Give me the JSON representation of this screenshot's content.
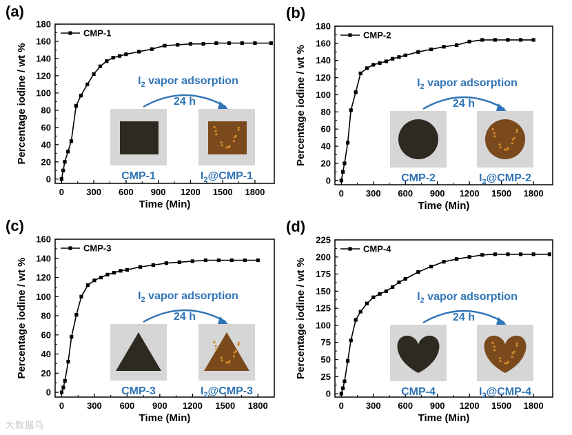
{
  "figure": {
    "watermark": "大数据鸟"
  },
  "chart_data": [
    {
      "type": "line",
      "panel_label": "(a)",
      "xlabel": "Time (Min)",
      "ylabel": "Percentage iodine / wt %",
      "xlim": [
        -60,
        1980
      ],
      "ylim": [
        -5,
        180
      ],
      "xticks": [
        0,
        300,
        600,
        900,
        1200,
        1500,
        1800
      ],
      "yticks": [
        0,
        20,
        40,
        60,
        80,
        100,
        120,
        140,
        160,
        180
      ],
      "legend_position": "top-left",
      "series": [
        {
          "name": "CMP-1",
          "color": "#000000",
          "marker": "square",
          "x": [
            0,
            15,
            30,
            60,
            90,
            135,
            180,
            240,
            300,
            360,
            420,
            480,
            540,
            600,
            720,
            840,
            960,
            1080,
            1200,
            1320,
            1440,
            1560,
            1680,
            1800,
            1950
          ],
          "y": [
            0,
            10,
            20,
            32,
            44,
            85,
            97,
            110,
            122,
            131,
            137,
            141,
            143,
            145,
            148,
            151,
            155,
            156,
            157,
            157,
            158,
            158,
            158,
            158,
            158
          ]
        }
      ],
      "annotation": {
        "prefix": "I",
        "sub": "2",
        "suffix": " vapor adsorption",
        "duration": "24 h"
      },
      "photos": [
        {
          "label": "CMP-1",
          "shape": "square",
          "tone": "black"
        },
        {
          "label": "I2@CMP-1",
          "shape": "square",
          "tone": "brown"
        }
      ]
    },
    {
      "type": "line",
      "panel_label": "(b)",
      "xlabel": "Time (Min)",
      "ylabel": "Percentage iodine / wt %",
      "xlim": [
        -60,
        1980
      ],
      "ylim": [
        -5,
        180
      ],
      "xticks": [
        0,
        300,
        600,
        900,
        1200,
        1500,
        1800
      ],
      "yticks": [
        0,
        20,
        40,
        60,
        80,
        100,
        120,
        140,
        160,
        180
      ],
      "legend_position": "top-left",
      "series": [
        {
          "name": "CMP-2",
          "color": "#000000",
          "marker": "square",
          "x": [
            0,
            15,
            30,
            60,
            90,
            135,
            180,
            240,
            300,
            360,
            420,
            480,
            540,
            600,
            720,
            840,
            960,
            1080,
            1200,
            1320,
            1440,
            1560,
            1680,
            1800
          ],
          "y": [
            0,
            10,
            20,
            44,
            82,
            103,
            125,
            131,
            135,
            137,
            139,
            142,
            144,
            146,
            150,
            153,
            156,
            158,
            162,
            164,
            164,
            164,
            164,
            164
          ]
        }
      ],
      "annotation": {
        "prefix": "I",
        "sub": "2",
        "suffix": " vapor adsorption",
        "duration": "24 h"
      },
      "photos": [
        {
          "label": "CMP-2",
          "shape": "circle",
          "tone": "black"
        },
        {
          "label": "I2@CMP-2",
          "shape": "circle",
          "tone": "brown"
        }
      ]
    },
    {
      "type": "line",
      "panel_label": "(c)",
      "xlabel": "Time (Min)",
      "ylabel": "Percentage iodine / wt %",
      "xlim": [
        -60,
        1950
      ],
      "ylim": [
        -5,
        160
      ],
      "xticks": [
        0,
        300,
        600,
        900,
        1200,
        1500,
        1800
      ],
      "yticks": [
        0,
        20,
        40,
        60,
        80,
        100,
        120,
        140,
        160
      ],
      "legend_position": "top-left",
      "series": [
        {
          "name": "CMP-3",
          "color": "#000000",
          "marker": "square",
          "x": [
            0,
            15,
            30,
            60,
            90,
            135,
            180,
            240,
            300,
            360,
            420,
            480,
            540,
            600,
            720,
            840,
            960,
            1080,
            1200,
            1320,
            1440,
            1560,
            1680,
            1800
          ],
          "y": [
            0,
            5,
            12,
            32,
            58,
            81,
            100,
            112,
            117,
            120,
            123,
            125,
            127,
            128,
            131,
            133,
            135,
            136,
            137,
            138,
            138,
            138,
            138,
            138
          ]
        }
      ],
      "annotation": {
        "prefix": "I",
        "sub": "2",
        "suffix": " vapor adsorption",
        "duration": "24 h"
      },
      "photos": [
        {
          "label": "CMP-3",
          "shape": "triangle",
          "tone": "black"
        },
        {
          "label": "I2@CMP-3",
          "shape": "triangle",
          "tone": "brown"
        }
      ]
    },
    {
      "type": "line",
      "panel_label": "(d)",
      "xlabel": "Time (Min)",
      "ylabel": "Percentage iodine / wt %",
      "xlim": [
        -60,
        1980
      ],
      "ylim": [
        -5,
        225
      ],
      "xticks": [
        0,
        300,
        600,
        900,
        1200,
        1500,
        1800
      ],
      "yticks": [
        0,
        25,
        50,
        75,
        100,
        125,
        150,
        175,
        200,
        225
      ],
      "legend_position": "top-left",
      "series": [
        {
          "name": "CMP-4",
          "color": "#000000",
          "marker": "square",
          "x": [
            0,
            15,
            30,
            60,
            90,
            135,
            180,
            240,
            300,
            360,
            420,
            480,
            540,
            600,
            720,
            840,
            960,
            1080,
            1200,
            1320,
            1440,
            1560,
            1680,
            1800,
            1950
          ],
          "y": [
            0,
            8,
            18,
            48,
            78,
            108,
            120,
            132,
            141,
            146,
            150,
            156,
            163,
            168,
            178,
            186,
            193,
            197,
            200,
            203,
            204,
            204,
            204,
            204,
            204
          ]
        }
      ],
      "annotation": {
        "prefix": "I",
        "sub": "2",
        "suffix": " vapor adsorption",
        "duration": "24 h"
      },
      "photos": [
        {
          "label": "CMP-4",
          "shape": "heart",
          "tone": "black"
        },
        {
          "label": "I2@CMP-4",
          "shape": "heart",
          "tone": "brown"
        }
      ]
    }
  ]
}
